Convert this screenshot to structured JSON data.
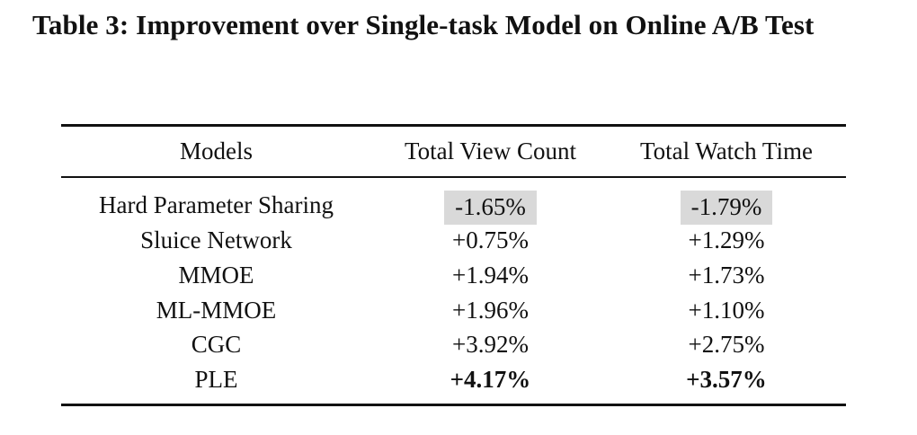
{
  "caption": "Table 3: Improvement over Single-task Model on Online A/B Test",
  "table": {
    "headers": [
      "Models",
      "Total View Count",
      "Total Watch Time"
    ],
    "rows": [
      {
        "model": "Hard Parameter Sharing",
        "view_count": "-1.65%",
        "watch_time": "-1.79%"
      },
      {
        "model": "Sluice Network",
        "view_count": "+0.75%",
        "watch_time": "+1.29%"
      },
      {
        "model": "MMOE",
        "view_count": "+1.94%",
        "watch_time": "+1.73%"
      },
      {
        "model": "ML-MMOE",
        "view_count": "+1.96%",
        "watch_time": "+1.10%"
      },
      {
        "model": "CGC",
        "view_count": "+3.92%",
        "watch_time": "+2.75%"
      },
      {
        "model": "PLE",
        "view_count": "+4.17%",
        "watch_time": "+3.57%"
      }
    ],
    "shaded_row_color": "#d9d9d9"
  }
}
